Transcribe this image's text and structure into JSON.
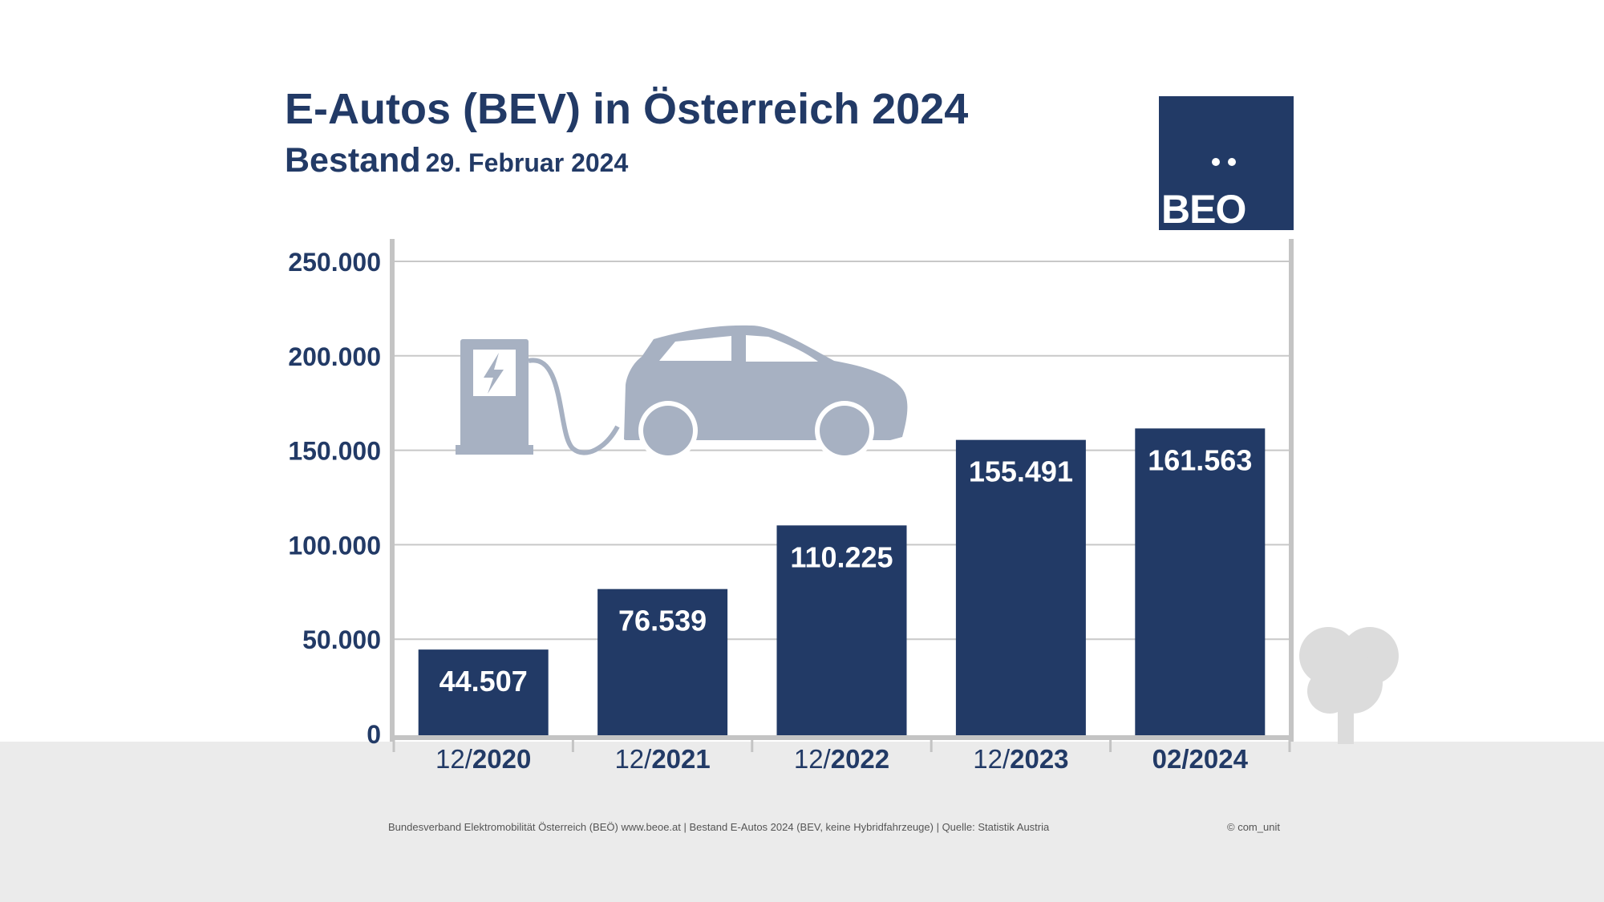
{
  "header": {
    "title": "E-Autos (BEV) in Österreich 2024",
    "subtitle_main": "Bestand",
    "subtitle_date": "29. Februar 2024"
  },
  "logo": {
    "text": "BEO"
  },
  "footer": {
    "source": "Bundesverband Elektromobilität Österreich (BEÖ) www.beoe.at | Bestand E-Autos 2024 (BEV, keine Hybridfahrzeuge) | Quelle: Statistik Austria",
    "copyright": "© com_unit"
  },
  "colors": {
    "bar": "#223a66",
    "text": "#223a66",
    "grid": "#c8c8c8",
    "axis": "#c4c4c4",
    "illustration": "#a7b1c2",
    "tree": "#dcdcdc",
    "ground": "#ebebeb"
  },
  "chart_data": {
    "type": "bar",
    "title": "E-Autos (BEV) in Österreich 2024",
    "subtitle": "Bestand 29. Februar 2024",
    "categories": [
      {
        "prefix": "12/",
        "year": "2020"
      },
      {
        "prefix": "12/",
        "year": "2021"
      },
      {
        "prefix": "12/",
        "year": "2022"
      },
      {
        "prefix": "12/",
        "year": "2023"
      },
      {
        "prefix": "",
        "year": "02/2024"
      }
    ],
    "values": [
      44507,
      76539,
      110225,
      155491,
      161563
    ],
    "value_labels": [
      "44.507",
      "76.539",
      "110.225",
      "155.491",
      "161.563"
    ],
    "yticks": [
      0,
      50000,
      100000,
      150000,
      200000,
      250000
    ],
    "ytick_labels": [
      "0",
      "50.000",
      "100.000",
      "150.000",
      "200.000",
      "250.000"
    ],
    "ylim": [
      0,
      250000
    ],
    "grid": true,
    "legend": "none"
  }
}
